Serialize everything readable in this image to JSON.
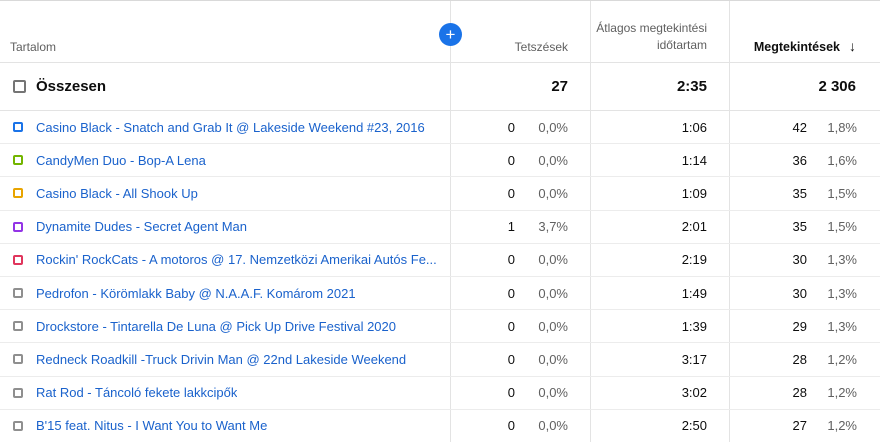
{
  "table": {
    "columns": {
      "content_label": "Tartalom",
      "likes_label": "Tetszések",
      "avg_duration_label": "Átlagos megtekintési időtartam",
      "views_label": "Megtekintések",
      "sort_arrow": "↓",
      "add_metric_label": "+"
    },
    "totals": {
      "label": "Összesen",
      "likes": "27",
      "avg_view_duration": "2:35",
      "views": "2 306"
    },
    "rows": [
      {
        "title": "Casino Black - Snatch and Grab It @ Lakeside Weekend #23, 2016",
        "likes": "0",
        "likes_pct": "0,0%",
        "avg_view_duration": "1:06",
        "views": "42",
        "views_pct": "1,8%",
        "checkbox_color": "#1a73e8"
      },
      {
        "title": "CandyMen Duo - Bop-A Lena",
        "likes": "0",
        "likes_pct": "0,0%",
        "avg_view_duration": "1:14",
        "views": "36",
        "views_pct": "1,6%",
        "checkbox_color": "#73b500"
      },
      {
        "title": "Casino Black - All Shook Up",
        "likes": "0",
        "likes_pct": "0,0%",
        "avg_view_duration": "1:09",
        "views": "35",
        "views_pct": "1,5%",
        "checkbox_color": "#e8a400"
      },
      {
        "title": "Dynamite Dudes - Secret Agent Man",
        "likes": "1",
        "likes_pct": "3,7%",
        "avg_view_duration": "2:01",
        "views": "35",
        "views_pct": "1,5%",
        "checkbox_color": "#9334e6"
      },
      {
        "title": "Rockin' RockCats - A motoros @ 17. Nemzetközi Amerikai Autós Fe...",
        "likes": "0",
        "likes_pct": "0,0%",
        "avg_view_duration": "2:19",
        "views": "30",
        "views_pct": "1,3%",
        "checkbox_color": "#e0355c"
      },
      {
        "title": "Pedrofon - Körömlakk Baby @ N.A.A.F. Komárom 2021",
        "likes": "0",
        "likes_pct": "0,0%",
        "avg_view_duration": "1:49",
        "views": "30",
        "views_pct": "1,3%",
        "checkbox_color": "#8f8f8f"
      },
      {
        "title": "Drockstore - Tintarella De Luna @ Pick Up Drive Festival 2020",
        "likes": "0",
        "likes_pct": "0,0%",
        "avg_view_duration": "1:39",
        "views": "29",
        "views_pct": "1,3%",
        "checkbox_color": "#8f8f8f"
      },
      {
        "title": "Redneck Roadkill -Truck Drivin Man @ 22nd Lakeside Weekend",
        "likes": "0",
        "likes_pct": "0,0%",
        "avg_view_duration": "3:17",
        "views": "28",
        "views_pct": "1,2%",
        "checkbox_color": "#8f8f8f"
      },
      {
        "title": "Rat Rod - Táncoló fekete lakkcipők",
        "likes": "0",
        "likes_pct": "0,0%",
        "avg_view_duration": "3:02",
        "views": "28",
        "views_pct": "1,2%",
        "checkbox_color": "#8f8f8f"
      },
      {
        "title": "B'15 feat. Nitus - I Want You to Want Me",
        "likes": "0",
        "likes_pct": "0,0%",
        "avg_view_duration": "2:50",
        "views": "27",
        "views_pct": "1,2%",
        "checkbox_color": "#8f8f8f"
      }
    ],
    "colors": {
      "accent_blue": "#1a73e8",
      "link_blue": "#1a62cc",
      "muted_text": "#606060"
    }
  }
}
